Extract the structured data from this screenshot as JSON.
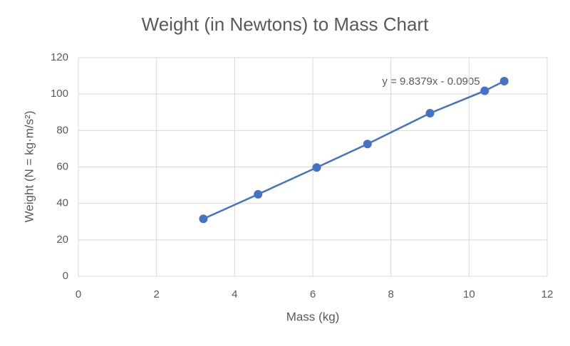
{
  "chart_data": {
    "type": "scatter-line",
    "title": "Weight (in Newtons) to Mass Chart",
    "x_label": "Mass (kg)",
    "y_label": "Weight (N = kg·m/s²)",
    "annotation": "y = 9.8379x - 0.0905",
    "x": [
      3.2,
      4.6,
      6.1,
      7.4,
      9.0,
      10.4,
      10.9
    ],
    "values": [
      31.5,
      45,
      59.7,
      72.6,
      89.5,
      101.8,
      107.1
    ],
    "color": "#4472c4",
    "xlim": [
      0,
      12
    ],
    "xticks": [
      0,
      2,
      4,
      6,
      8,
      10,
      12
    ],
    "ylim": [
      0,
      120
    ],
    "yticks": [
      0,
      20,
      40,
      60,
      80,
      100,
      120
    ],
    "grid": true
  }
}
